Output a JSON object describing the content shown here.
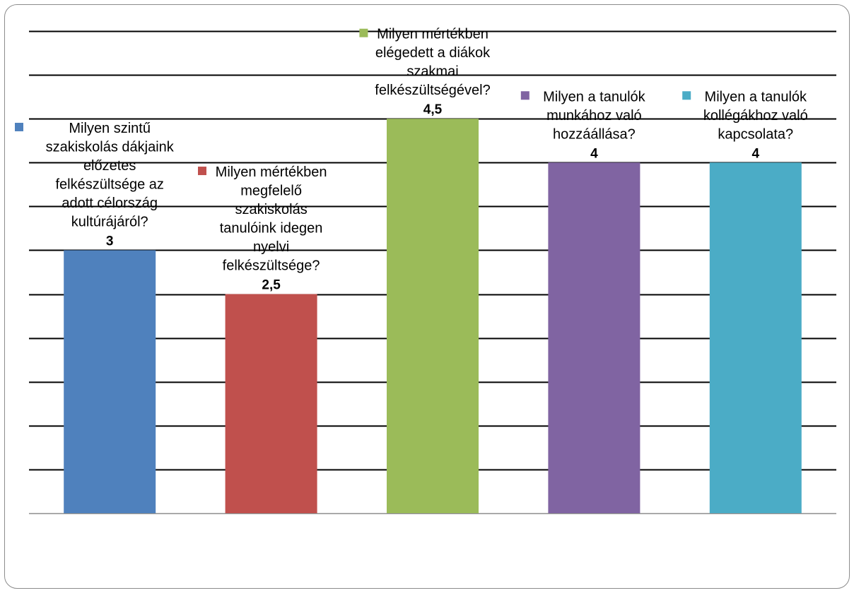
{
  "chart_data": {
    "type": "bar",
    "categories": [
      "Milyen szintű szakiskolás dákjaink előzetes felkészültsége az adott célország kultúrájáról?",
      "Milyen mértékben megfelelő szakiskolás tanulóink idegen nyelvi felkészültsége?",
      "Milyen mértékben elégedett a diákok szakmai felkészültségével?",
      "Milyen a tanulók munkához való hozzáállása?",
      "Milyen a tanulók kollégákhoz való kapcsolata?"
    ],
    "category_label_lines": [
      [
        "Milyen szintű",
        "szakiskolás dákjaink",
        "előzetes",
        "felkészültsége az",
        "adott célország",
        "kultúrájáról?"
      ],
      [
        "Milyen mértékben",
        "megfelelő",
        "szakiskolás",
        "tanulóink idegen",
        "nyelvi",
        "felkészültsége?"
      ],
      [
        "Milyen mértékben",
        "elégedett a diákok",
        "szakmai",
        "felkészültségével?"
      ],
      [
        "Milyen a tanulók",
        "munkához való",
        "hozzáállása?"
      ],
      [
        "Milyen a tanulók",
        "kollégákhoz való",
        "kapcsolata?"
      ]
    ],
    "values": [
      3,
      2.5,
      4.5,
      4,
      4
    ],
    "value_labels": [
      "3",
      "2,5",
      "4,5",
      "4",
      "4"
    ],
    "colors": [
      "#4f81bd",
      "#c0504d",
      "#9bbb59",
      "#8064a2",
      "#4bacc6"
    ],
    "ylim": [
      0,
      5.5
    ],
    "ytick_step": 0.5,
    "grid": true,
    "legend": "none",
    "title": "",
    "xlabel": "",
    "ylabel": ""
  }
}
